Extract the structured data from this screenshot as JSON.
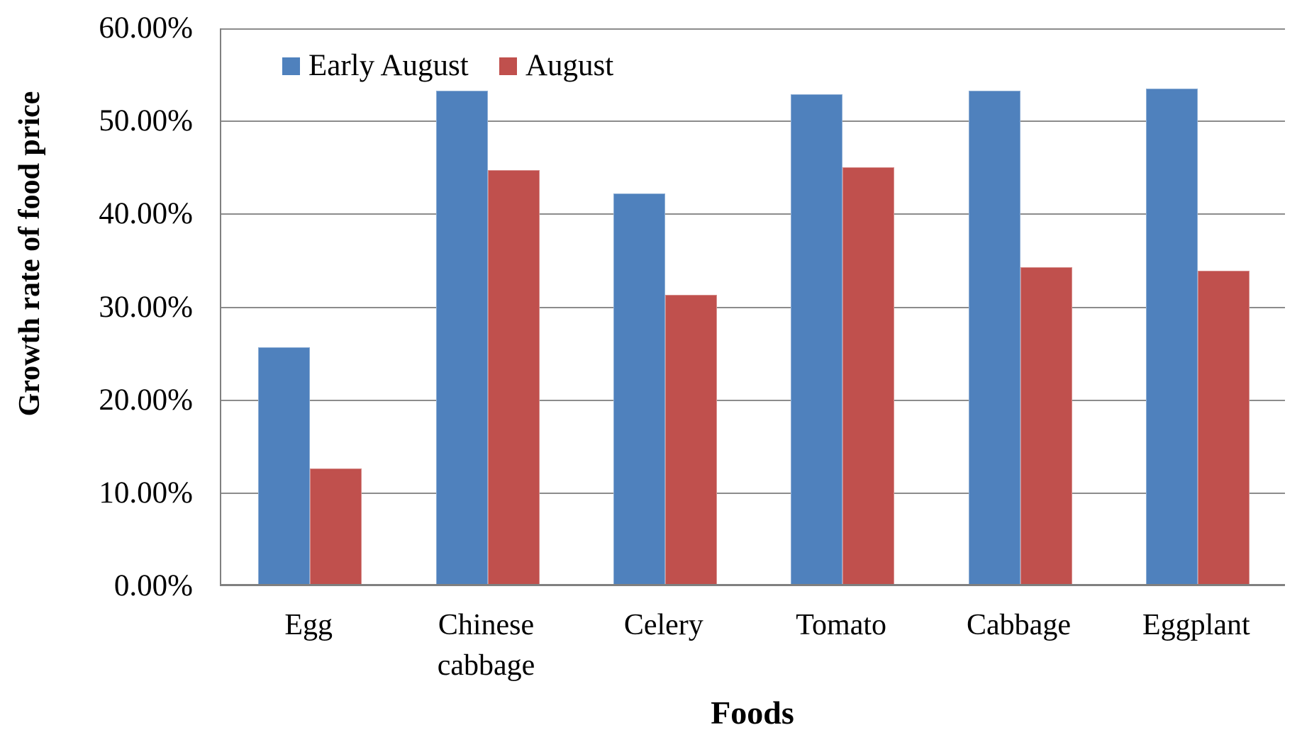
{
  "chart_data": {
    "type": "bar",
    "title": "",
    "xlabel": "Foods",
    "ylabel": "Growth rate of food price",
    "categories": [
      "Egg",
      "Chinese cabbage",
      "Celery",
      "Tomato",
      "Cabbage",
      "Eggplant"
    ],
    "series": [
      {
        "name": "Early August",
        "color": "#4F81BD",
        "values": [
          25.5,
          53.1,
          42.0,
          52.7,
          53.1,
          53.3
        ]
      },
      {
        "name": "August",
        "color": "#C0504D",
        "values": [
          12.4,
          44.5,
          31.1,
          44.8,
          34.1,
          33.7
        ]
      }
    ],
    "y_ticks": [
      "0.00%",
      "10.00%",
      "20.00%",
      "30.00%",
      "40.00%",
      "50.00%",
      "60.00%"
    ],
    "y_tick_step": 10,
    "ylim": [
      0,
      60
    ],
    "grid": true,
    "legend_position": "top-center-inside"
  },
  "colors": {
    "gridline": "#8c8c8c",
    "axis": "#808080",
    "text": "#000000",
    "background": "#ffffff"
  }
}
